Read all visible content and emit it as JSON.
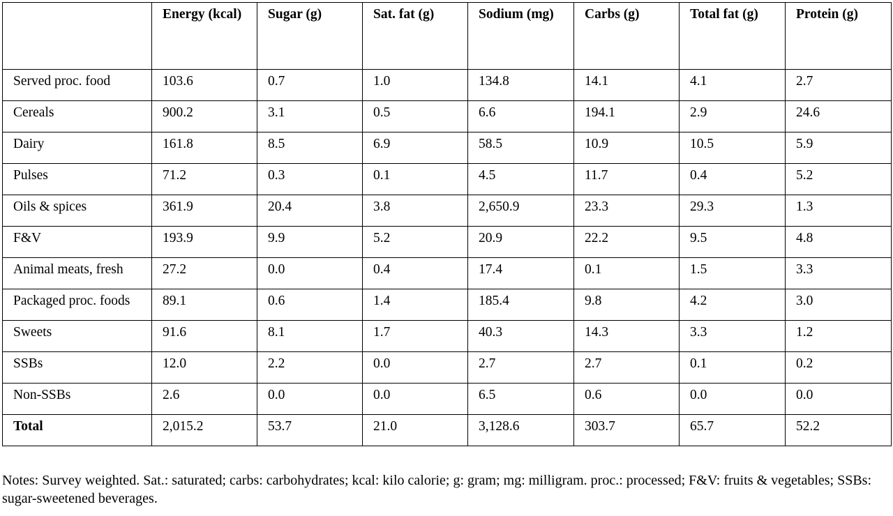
{
  "table": {
    "headers": [
      "",
      "Energy (kcal)",
      "Sugar (g)",
      "Sat. fat (g)",
      "Sodium (mg)",
      "Carbs (g)",
      "Total fat (g)",
      "Protein (g)"
    ],
    "rows": [
      {
        "label": "Served proc. food",
        "values": [
          "103.6",
          "0.7",
          "1.0",
          "134.8",
          "14.1",
          "4.1",
          "2.7"
        ]
      },
      {
        "label": "Cereals",
        "values": [
          "900.2",
          "3.1",
          "0.5",
          "6.6",
          "194.1",
          "2.9",
          "24.6"
        ]
      },
      {
        "label": "Dairy",
        "values": [
          "161.8",
          "8.5",
          "6.9",
          "58.5",
          "10.9",
          "10.5",
          "5.9"
        ]
      },
      {
        "label": "Pulses",
        "values": [
          "71.2",
          "0.3",
          "0.1",
          "4.5",
          "11.7",
          "0.4",
          "5.2"
        ]
      },
      {
        "label": "Oils & spices",
        "values": [
          "361.9",
          "20.4",
          "3.8",
          "2,650.9",
          "23.3",
          "29.3",
          "1.3"
        ]
      },
      {
        "label": "F&V",
        "values": [
          "193.9",
          "9.9",
          "5.2",
          "20.9",
          "22.2",
          "9.5",
          "4.8"
        ]
      },
      {
        "label": "Animal meats, fresh",
        "values": [
          "27.2",
          "0.0",
          "0.4",
          "17.4",
          "0.1",
          "1.5",
          "3.3"
        ]
      },
      {
        "label": "Packaged proc. foods",
        "values": [
          "89.1",
          "0.6",
          "1.4",
          "185.4",
          "9.8",
          "4.2",
          "3.0"
        ]
      },
      {
        "label": "Sweets",
        "values": [
          "91.6",
          "8.1",
          "1.7",
          "40.3",
          "14.3",
          "3.3",
          "1.2"
        ]
      },
      {
        "label": "SSBs",
        "values": [
          "12.0",
          "2.2",
          "0.0",
          "2.7",
          "2.7",
          "0.1",
          "0.2"
        ]
      },
      {
        "label": "Non-SSBs",
        "values": [
          "2.6",
          "0.0",
          "0.0",
          "6.5",
          "0.6",
          "0.0",
          "0.0"
        ]
      }
    ],
    "total": {
      "label": "Total",
      "values": [
        "2,015.2",
        "53.7",
        "21.0",
        "3,128.6",
        "303.7",
        "65.7",
        "52.2"
      ]
    }
  },
  "notes": "Notes: Survey weighted. Sat.: saturated; carbs: carbohydrates; kcal: kilo calorie; g: gram; mg: milligram. proc.: processed; F&V: fruits & vegetables; SSBs: sugar-sweetened beverages."
}
